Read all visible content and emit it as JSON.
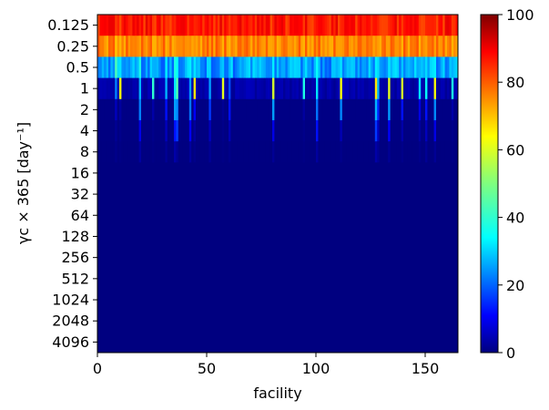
{
  "chart_data": {
    "type": "heatmap",
    "title": "",
    "xlabel": "facility",
    "ylabel": "γc × 365 [day⁻¹]",
    "xlim": [
      0,
      165
    ],
    "xticks": [
      0,
      50,
      100,
      150
    ],
    "y_categories": [
      "0.125",
      "0.25",
      "0.5",
      "1",
      "2",
      "4",
      "8",
      "16",
      "32",
      "64",
      "128",
      "256",
      "512",
      "1024",
      "2048",
      "4096"
    ],
    "colormap": "jet",
    "colorbar": {
      "range": [
        0,
        100
      ],
      "ticks": [
        0,
        20,
        40,
        60,
        80,
        100
      ]
    },
    "row_typical_values": [
      85,
      75,
      28,
      4,
      0.5,
      0.2,
      0.1,
      0.05,
      0,
      0,
      0,
      0,
      0,
      0,
      0,
      0
    ],
    "notable_facilities": [
      {
        "facility": 8,
        "values": [
          82,
          68,
          45,
          25,
          6,
          2,
          1
        ]
      },
      {
        "facility": 10,
        "values": [
          80,
          70,
          35,
          62,
          3,
          1,
          0.5
        ]
      },
      {
        "facility": 19,
        "values": [
          85,
          72,
          40,
          30,
          25,
          10,
          3
        ]
      },
      {
        "facility": 25,
        "values": [
          82,
          70,
          30,
          42,
          4,
          1,
          0.5
        ]
      },
      {
        "facility": 31,
        "values": [
          82,
          70,
          36,
          30,
          14,
          6,
          2
        ]
      },
      {
        "facility": 35,
        "values": [
          84,
          72,
          40,
          35,
          28,
          14,
          4
        ]
      },
      {
        "facility": 36,
        "values": [
          88,
          74,
          38,
          45,
          26,
          18,
          2
        ]
      },
      {
        "facility": 42,
        "values": [
          86,
          74,
          36,
          28,
          24,
          12,
          3
        ]
      },
      {
        "facility": 44,
        "values": [
          84,
          73,
          35,
          65,
          12,
          3,
          1
        ]
      },
      {
        "facility": 51,
        "values": [
          84,
          72,
          34,
          28,
          18,
          6,
          2
        ]
      },
      {
        "facility": 57,
        "values": [
          82,
          70,
          32,
          60,
          2,
          1,
          0.5
        ]
      },
      {
        "facility": 60,
        "values": [
          82,
          70,
          30,
          20,
          14,
          5,
          1
        ]
      },
      {
        "facility": 80,
        "values": [
          84,
          72,
          36,
          58,
          28,
          10,
          2
        ]
      },
      {
        "facility": 94,
        "values": [
          82,
          70,
          30,
          40,
          3,
          1,
          0.5
        ]
      },
      {
        "facility": 100,
        "values": [
          86,
          74,
          38,
          35,
          24,
          14,
          3
        ]
      },
      {
        "facility": 111,
        "values": [
          84,
          72,
          35,
          62,
          26,
          5,
          1
        ]
      },
      {
        "facility": 127,
        "values": [
          86,
          74,
          36,
          65,
          30,
          18,
          4
        ]
      },
      {
        "facility": 128,
        "values": [
          84,
          72,
          34,
          30,
          16,
          6,
          2
        ]
      },
      {
        "facility": 133,
        "values": [
          84,
          72,
          35,
          60,
          28,
          12,
          2
        ]
      },
      {
        "facility": 139,
        "values": [
          82,
          70,
          32,
          58,
          14,
          4,
          1
        ]
      },
      {
        "facility": 147,
        "values": [
          82,
          70,
          30,
          35,
          10,
          3,
          1
        ]
      },
      {
        "facility": 150,
        "values": [
          84,
          72,
          34,
          38,
          14,
          6,
          2
        ]
      },
      {
        "facility": 154,
        "values": [
          84,
          72,
          36,
          62,
          26,
          10,
          2
        ]
      },
      {
        "facility": 162,
        "values": [
          82,
          70,
          30,
          40,
          4,
          1,
          0.5
        ]
      }
    ]
  }
}
